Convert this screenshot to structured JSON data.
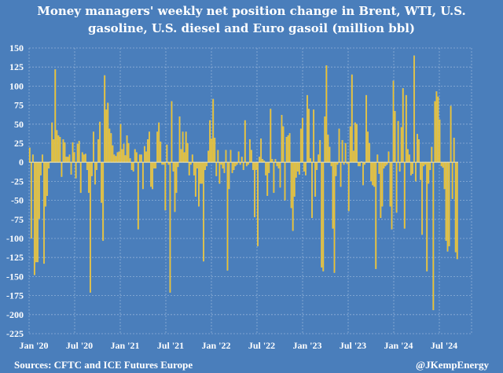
{
  "chart_data": {
    "type": "bar",
    "title": "Money managers' weekly net position change in Brent, WTI, U.S. gasoline, U.S. diesel and Euro gasoil (million bbl)",
    "title_lines": [
      "Money managers' weekly net position change in Brent, WTI, U.S.",
      "gasoline, U.S. diesel and Euro gasoil (million bbl)"
    ],
    "xlabel": "",
    "ylabel": "",
    "ylim": [
      -225,
      150
    ],
    "yticks": [
      150,
      125,
      100,
      75,
      50,
      25,
      0,
      -25,
      -50,
      -75,
      -100,
      -125,
      -150,
      -175,
      -200,
      -225
    ],
    "xtick_labels": [
      "Jan '20",
      "Jul '20",
      "Jan '21",
      "Jul '21",
      "Jan '22",
      "Jul '22",
      "Jan '23",
      "Jul '23",
      "Jan '24",
      "Jul '24"
    ],
    "frequency": "weekly",
    "grid": true,
    "bar_color": "#f0c020",
    "background_color": "#4a7ebb",
    "values": [
      19,
      -100,
      10,
      -148,
      -131,
      -131,
      -74,
      -17,
      10,
      -133,
      -58,
      -44,
      -8,
      1,
      52,
      30,
      122,
      42,
      35,
      33,
      -19,
      30,
      26,
      7,
      7,
      10,
      -16,
      26,
      13,
      -21,
      24,
      28,
      -40,
      13,
      10,
      11,
      -10,
      -40,
      -171,
      -18,
      40,
      -29,
      -10,
      30,
      53,
      -53,
      -103,
      114,
      69,
      78,
      44,
      38,
      22,
      10,
      8,
      13,
      14,
      50,
      17,
      24,
      9,
      35,
      25,
      5,
      -10,
      -12,
      17,
      13,
      -88,
      10,
      10,
      -35,
      21,
      14,
      30,
      40,
      -32,
      -35,
      -8,
      -8,
      40,
      52,
      27,
      -3,
      -3,
      -63,
      23,
      -3,
      -171,
      80,
      -12,
      -65,
      -40,
      -6,
      60,
      17,
      40,
      13,
      40,
      25,
      -17,
      -3,
      10,
      -17,
      -45,
      -8,
      -58,
      -28,
      -28,
      -130,
      -10,
      -5,
      15,
      55,
      31,
      83,
      32,
      -18,
      16,
      -28,
      -3,
      -8,
      -14,
      16,
      -142,
      -35,
      16,
      -14,
      -10,
      -5,
      -3,
      14,
      -3,
      7,
      -10,
      55,
      -5,
      -3,
      30,
      16,
      -10,
      -72,
      -10,
      -110,
      7,
      31,
      4,
      2,
      -17,
      -44,
      -14,
      70,
      4,
      -40,
      4,
      -5,
      -8,
      -33,
      62,
      47,
      -50,
      33,
      35,
      38,
      -60,
      -90,
      -45,
      -20,
      -12,
      -16,
      44,
      58,
      -12,
      -17,
      88,
      70,
      5,
      -73,
      69,
      -45,
      -10,
      10,
      29,
      -138,
      -143,
      60,
      127,
      36,
      20,
      -5,
      -87,
      -145,
      -18,
      -3,
      44,
      -32,
      29,
      -3,
      25,
      -2,
      -64,
      47,
      115,
      15,
      52,
      50,
      -5,
      -5,
      1,
      -30,
      -3,
      88,
      40,
      25,
      -25,
      -30,
      -32,
      -140,
      10,
      -15,
      -73,
      -58,
      -8,
      -5,
      -3,
      14,
      -58,
      -88,
      107,
      67,
      -66,
      54,
      -12,
      46,
      97,
      -87,
      88,
      17,
      10,
      -17,
      -15,
      140,
      -25,
      37,
      30,
      -23,
      -95,
      -5,
      -3,
      -143,
      -28,
      -10,
      20,
      -194,
      80,
      93,
      86,
      56,
      -5,
      -7,
      -35,
      -103,
      -117,
      -110,
      74,
      -48,
      32,
      -118,
      -127
    ]
  },
  "footer": {
    "source": "Sources: CFTC and ICE Futures Europe",
    "credit": "@JKempEnergy"
  }
}
